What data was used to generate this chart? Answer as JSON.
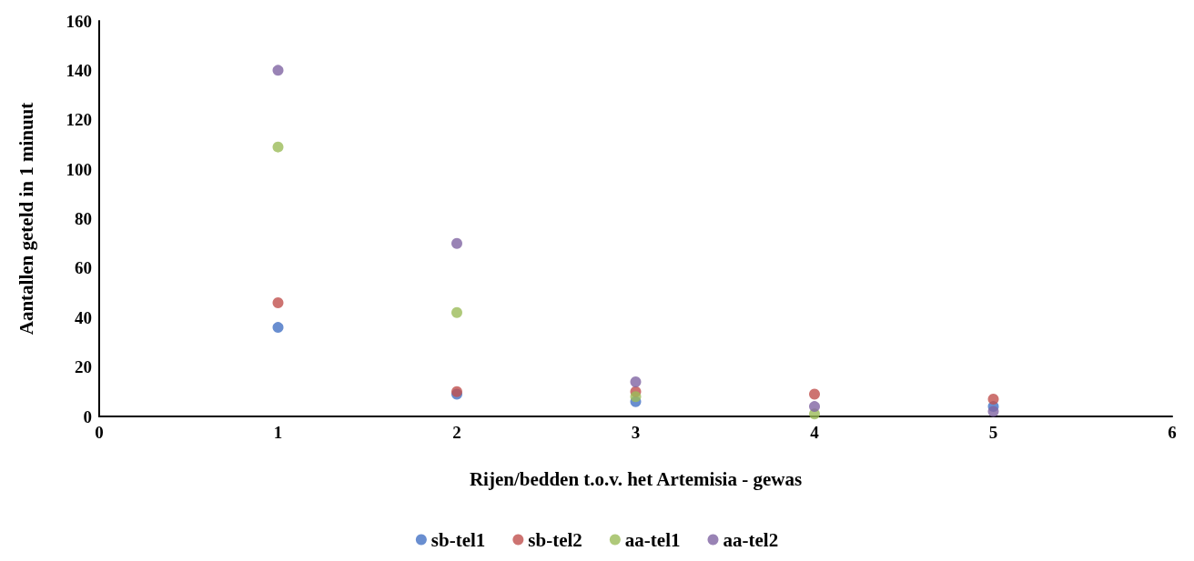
{
  "chart_data": {
    "type": "scatter",
    "xlabel": "Rijen/bedden t.o.v. het Artemisia - gewas",
    "ylabel": "Aantallen geteld in 1 minuut",
    "x": [
      1,
      2,
      3,
      4,
      5
    ],
    "series": [
      {
        "name": "sb-tel1",
        "color": "#4472c4",
        "values": [
          36,
          9,
          6,
          null,
          4
        ]
      },
      {
        "name": "sb-tel2",
        "color": "#c0504d",
        "values": [
          46,
          10,
          10,
          9,
          7
        ]
      },
      {
        "name": "aa-tel1",
        "color": "#9bbb59",
        "values": [
          109,
          42,
          8,
          1,
          null
        ]
      },
      {
        "name": "aa-tel2",
        "color": "#8064a2",
        "values": [
          140,
          70,
          14,
          4,
          2
        ]
      }
    ],
    "xlim": [
      0,
      6
    ],
    "xticks": [
      0,
      1,
      2,
      3,
      4,
      5,
      6
    ],
    "ylim": [
      0,
      160
    ],
    "yticks": [
      0,
      20,
      40,
      60,
      80,
      100,
      120,
      140,
      160
    ],
    "grid": false,
    "legend": "bottom",
    "marker": "circle"
  }
}
